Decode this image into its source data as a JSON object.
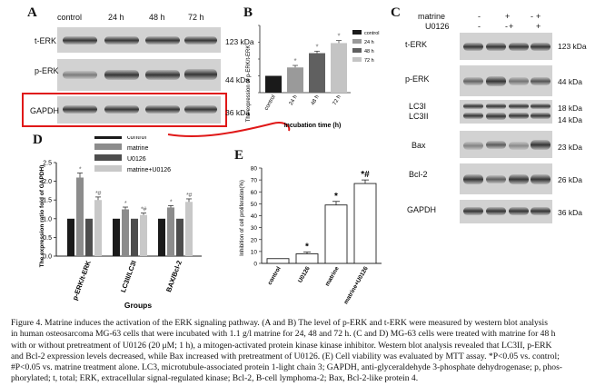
{
  "panelA": {
    "letter": "A",
    "lanes": [
      "control",
      "24 h",
      "48 h",
      "72 h"
    ],
    "rows": [
      {
        "label": "t-ERK",
        "kda": "123 kDa"
      },
      {
        "label": "p-ERK",
        "kda": "44 kDa"
      },
      {
        "label": "GAPDH",
        "kda": "36 kDa"
      }
    ]
  },
  "panelB": {
    "letter": "B",
    "ylabel": "The expression of p-ERK/t-ERK",
    "xlabel": "Incubation time (h)",
    "legend": [
      "control",
      "24 h",
      "48 h",
      "72 h"
    ],
    "colors": [
      "#1a1a1a",
      "#9a9a9a",
      "#606060",
      "#c4c4c4"
    ],
    "asterisk": "*",
    "chart_data": {
      "type": "bar",
      "categories": [
        "control",
        "24 h",
        "48 h",
        "72 h"
      ],
      "values": [
        1.0,
        1.5,
        2.35,
        2.95
      ],
      "errors": [
        0,
        0.12,
        0.12,
        0.15
      ],
      "ylim": [
        0,
        4
      ]
    }
  },
  "panelC": {
    "letter": "C",
    "treat_rows": [
      {
        "label": "matrine",
        "signs": [
          "-",
          "+",
          "-",
          "+"
        ]
      },
      {
        "label": "U0126",
        "signs": [
          "-",
          "-",
          "+",
          "+"
        ]
      }
    ],
    "rows": [
      {
        "label": "t-ERK",
        "kda": "123 kDa"
      },
      {
        "label": "p-ERK",
        "kda": "44 kDa"
      },
      {
        "label": "LC3I",
        "label2": "LC3II",
        "kda": "18 kDa",
        "kda2": "14 kDa"
      },
      {
        "label": "Bax",
        "kda": "23 kDa"
      },
      {
        "label": "Bcl-2",
        "kda": "26 kDa"
      },
      {
        "label": "GAPDH",
        "kda": "36 kDa"
      }
    ]
  },
  "panelD": {
    "letter": "D",
    "ylabel": "The expression ratio fold of GAPDH)",
    "xlabel": "Groups",
    "legend": [
      "control",
      "matrine",
      "U0126",
      "matrine+U0126"
    ],
    "colors": [
      "#1a1a1a",
      "#8c8c8c",
      "#4d4d4d",
      "#c8c8c8"
    ],
    "annotations": [
      "*",
      "*#"
    ],
    "chart_data": {
      "type": "bar",
      "categories": [
        "p-ERK/t-ERK",
        "LC3II/LC3I",
        "BAX/Bcl-2"
      ],
      "series": [
        {
          "name": "control",
          "values": [
            1.0,
            1.0,
            1.0
          ]
        },
        {
          "name": "matrine",
          "values": [
            2.1,
            1.25,
            1.3
          ]
        },
        {
          "name": "U0126",
          "values": [
            1.0,
            1.0,
            1.0
          ]
        },
        {
          "name": "matrine+U0126",
          "values": [
            1.5,
            1.1,
            1.45
          ]
        }
      ],
      "errors": [
        [
          0,
          0.12,
          0,
          0.08
        ],
        [
          0,
          0.06,
          0,
          0.05
        ],
        [
          0,
          0.05,
          0,
          0.08
        ]
      ],
      "yticks": [
        "0.0",
        "0.5",
        "1.0",
        "1.5",
        "2.0",
        "2.5"
      ],
      "ylim": [
        0,
        2.5
      ]
    }
  },
  "panelE": {
    "letter": "E",
    "ylabel": "Inhibition of cell proliferation(%)",
    "annotations": [
      "*",
      "*",
      "*#"
    ],
    "chart_data": {
      "type": "bar",
      "categories": [
        "control",
        "U0126",
        "matrine",
        "matrine+U0126"
      ],
      "values": [
        4,
        8,
        49,
        67
      ],
      "errors": [
        0,
        1.5,
        3,
        3
      ],
      "yticks": [
        "0",
        "10",
        "20",
        "30",
        "40",
        "50",
        "60",
        "70",
        "80"
      ],
      "ylim": [
        0,
        80
      ]
    }
  },
  "caption": [
    "Figure 4. Matrine induces the activation of the ERK signaling pathway. (A and B) The level of p-ERK and t-ERK were measured by western blot analysis",
    "in human osteosarcoma MG-63 cells that were incubated with 1.1 g/l matrine for 24, 48 and 72 h. (C and D) MG-63 cells were treated with matrine for 48 h",
    "with or without pretreatment of U0126 (20 μM; 1 h), a mitogen-activated protein kinase kinase inhibitor. Western blot analysis revealed that LC3II, p-ERK",
    "and Bcl-2 expression levels decreased, while Bax increased with pretreatment of U0126. (E) Cell viability was evaluated by MTT assay. *P<0.05 vs. control;",
    "#P<0.05 vs. matrine treatment alone. LC3, microtubule-associated protein 1-light chain 3; GAPDH, anti-glyceraldehyde 3-phosphate dehydrogenase; p, phos-",
    "phorylated; t, total; ERK, extracellular signal-regulated kinase; Bcl-2, B-cell lymphoma-2; Bax, Bcl-2-like protein 4."
  ]
}
